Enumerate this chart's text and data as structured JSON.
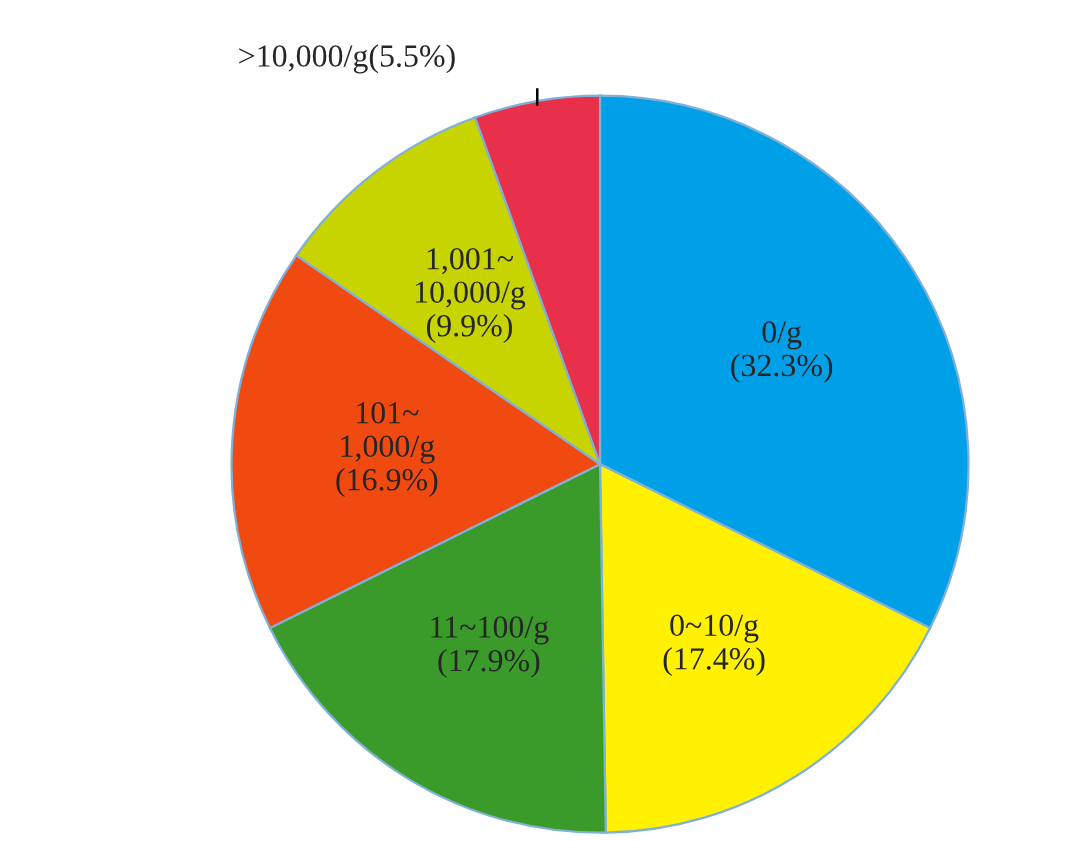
{
  "chart_data": {
    "type": "pie",
    "categories": [
      "0/g",
      "0~10/g",
      "11~100/g",
      "101~1,000/g",
      "1,001~10,000/g",
      ">10,000/g"
    ],
    "values": [
      32.3,
      17.4,
      17.9,
      16.9,
      9.9,
      5.5
    ],
    "value_labels": [
      "(32.3%)",
      "(17.4%)",
      "(17.9%)",
      "(16.9%)",
      "(9.9%)",
      "(5.5%)"
    ],
    "colors": [
      "#00a0e9",
      "#fff100",
      "#3a9a2a",
      "#f04a10",
      "#c8d400",
      "#e8304a"
    ]
  }
}
